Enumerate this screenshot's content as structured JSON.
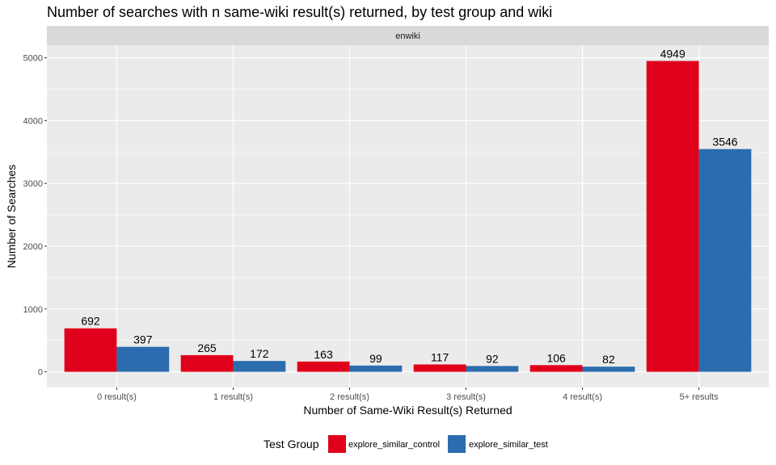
{
  "chart_data": {
    "type": "bar",
    "title": "Number of searches with n same-wiki result(s) returned, by test group and wiki",
    "facet_label": "enwiki",
    "xlabel": "Number of Same-Wiki Result(s) Returned",
    "ylabel": "Number of Searches",
    "categories": [
      "0 result(s)",
      "1 result(s)",
      "2 result(s)",
      "3 result(s)",
      "4 result(s)",
      "5+ results"
    ],
    "series": [
      {
        "name": "explore_similar_control",
        "color": "#E0001B",
        "values": [
          692,
          265,
          163,
          117,
          106,
          4949
        ]
      },
      {
        "name": "explore_similar_test",
        "color": "#2B6CAE",
        "values": [
          397,
          172,
          99,
          92,
          82,
          3546
        ]
      }
    ],
    "y_ticks": [
      0,
      1000,
      2000,
      3000,
      4000,
      5000
    ],
    "ylim": [
      -250,
      5200
    ],
    "grid": true,
    "legend": {
      "title": "Test Group",
      "position": "bottom"
    }
  }
}
